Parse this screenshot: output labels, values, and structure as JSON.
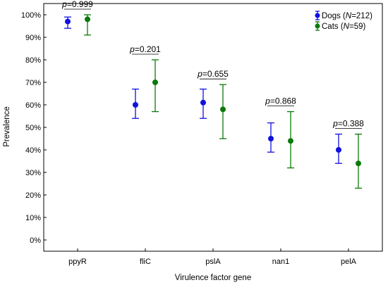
{
  "chart_data": {
    "type": "scatter",
    "xlabel": "Virulence factor gene",
    "ylabel": "Prevalence",
    "categories": [
      "ppyR",
      "fliC",
      "pslA",
      "nan1",
      "pelA"
    ],
    "ylim": [
      -0.05,
      1.05
    ],
    "yticks": [
      0,
      0.1,
      0.2,
      0.3,
      0.4,
      0.5,
      0.6,
      0.7,
      0.8,
      0.9,
      1.0
    ],
    "ytick_labels": [
      "0%",
      "10%",
      "20%",
      "30%",
      "40%",
      "50%",
      "60%",
      "70%",
      "80%",
      "90%",
      "100%"
    ],
    "grid": false,
    "legend_position": "top-right",
    "series": [
      {
        "name": "Dogs",
        "n": "212",
        "color": "#1010e0",
        "values": [
          0.97,
          0.6,
          0.61,
          0.45,
          0.4
        ],
        "lower": [
          0.94,
          0.54,
          0.54,
          0.39,
          0.34
        ],
        "upper": [
          0.99,
          0.67,
          0.67,
          0.52,
          0.47
        ]
      },
      {
        "name": "Cats",
        "n": "59",
        "color": "#0a7a0a",
        "values": [
          0.98,
          0.7,
          0.58,
          0.44,
          0.34
        ],
        "lower": [
          0.91,
          0.57,
          0.45,
          0.32,
          0.23
        ],
        "upper": [
          1.0,
          0.8,
          0.69,
          0.57,
          0.47
        ]
      }
    ],
    "p_values": [
      "0.999",
      "0.201",
      "0.655",
      "0.868",
      "0.388"
    ],
    "p_prefix": "p",
    "legend_n_prefix": "N"
  }
}
